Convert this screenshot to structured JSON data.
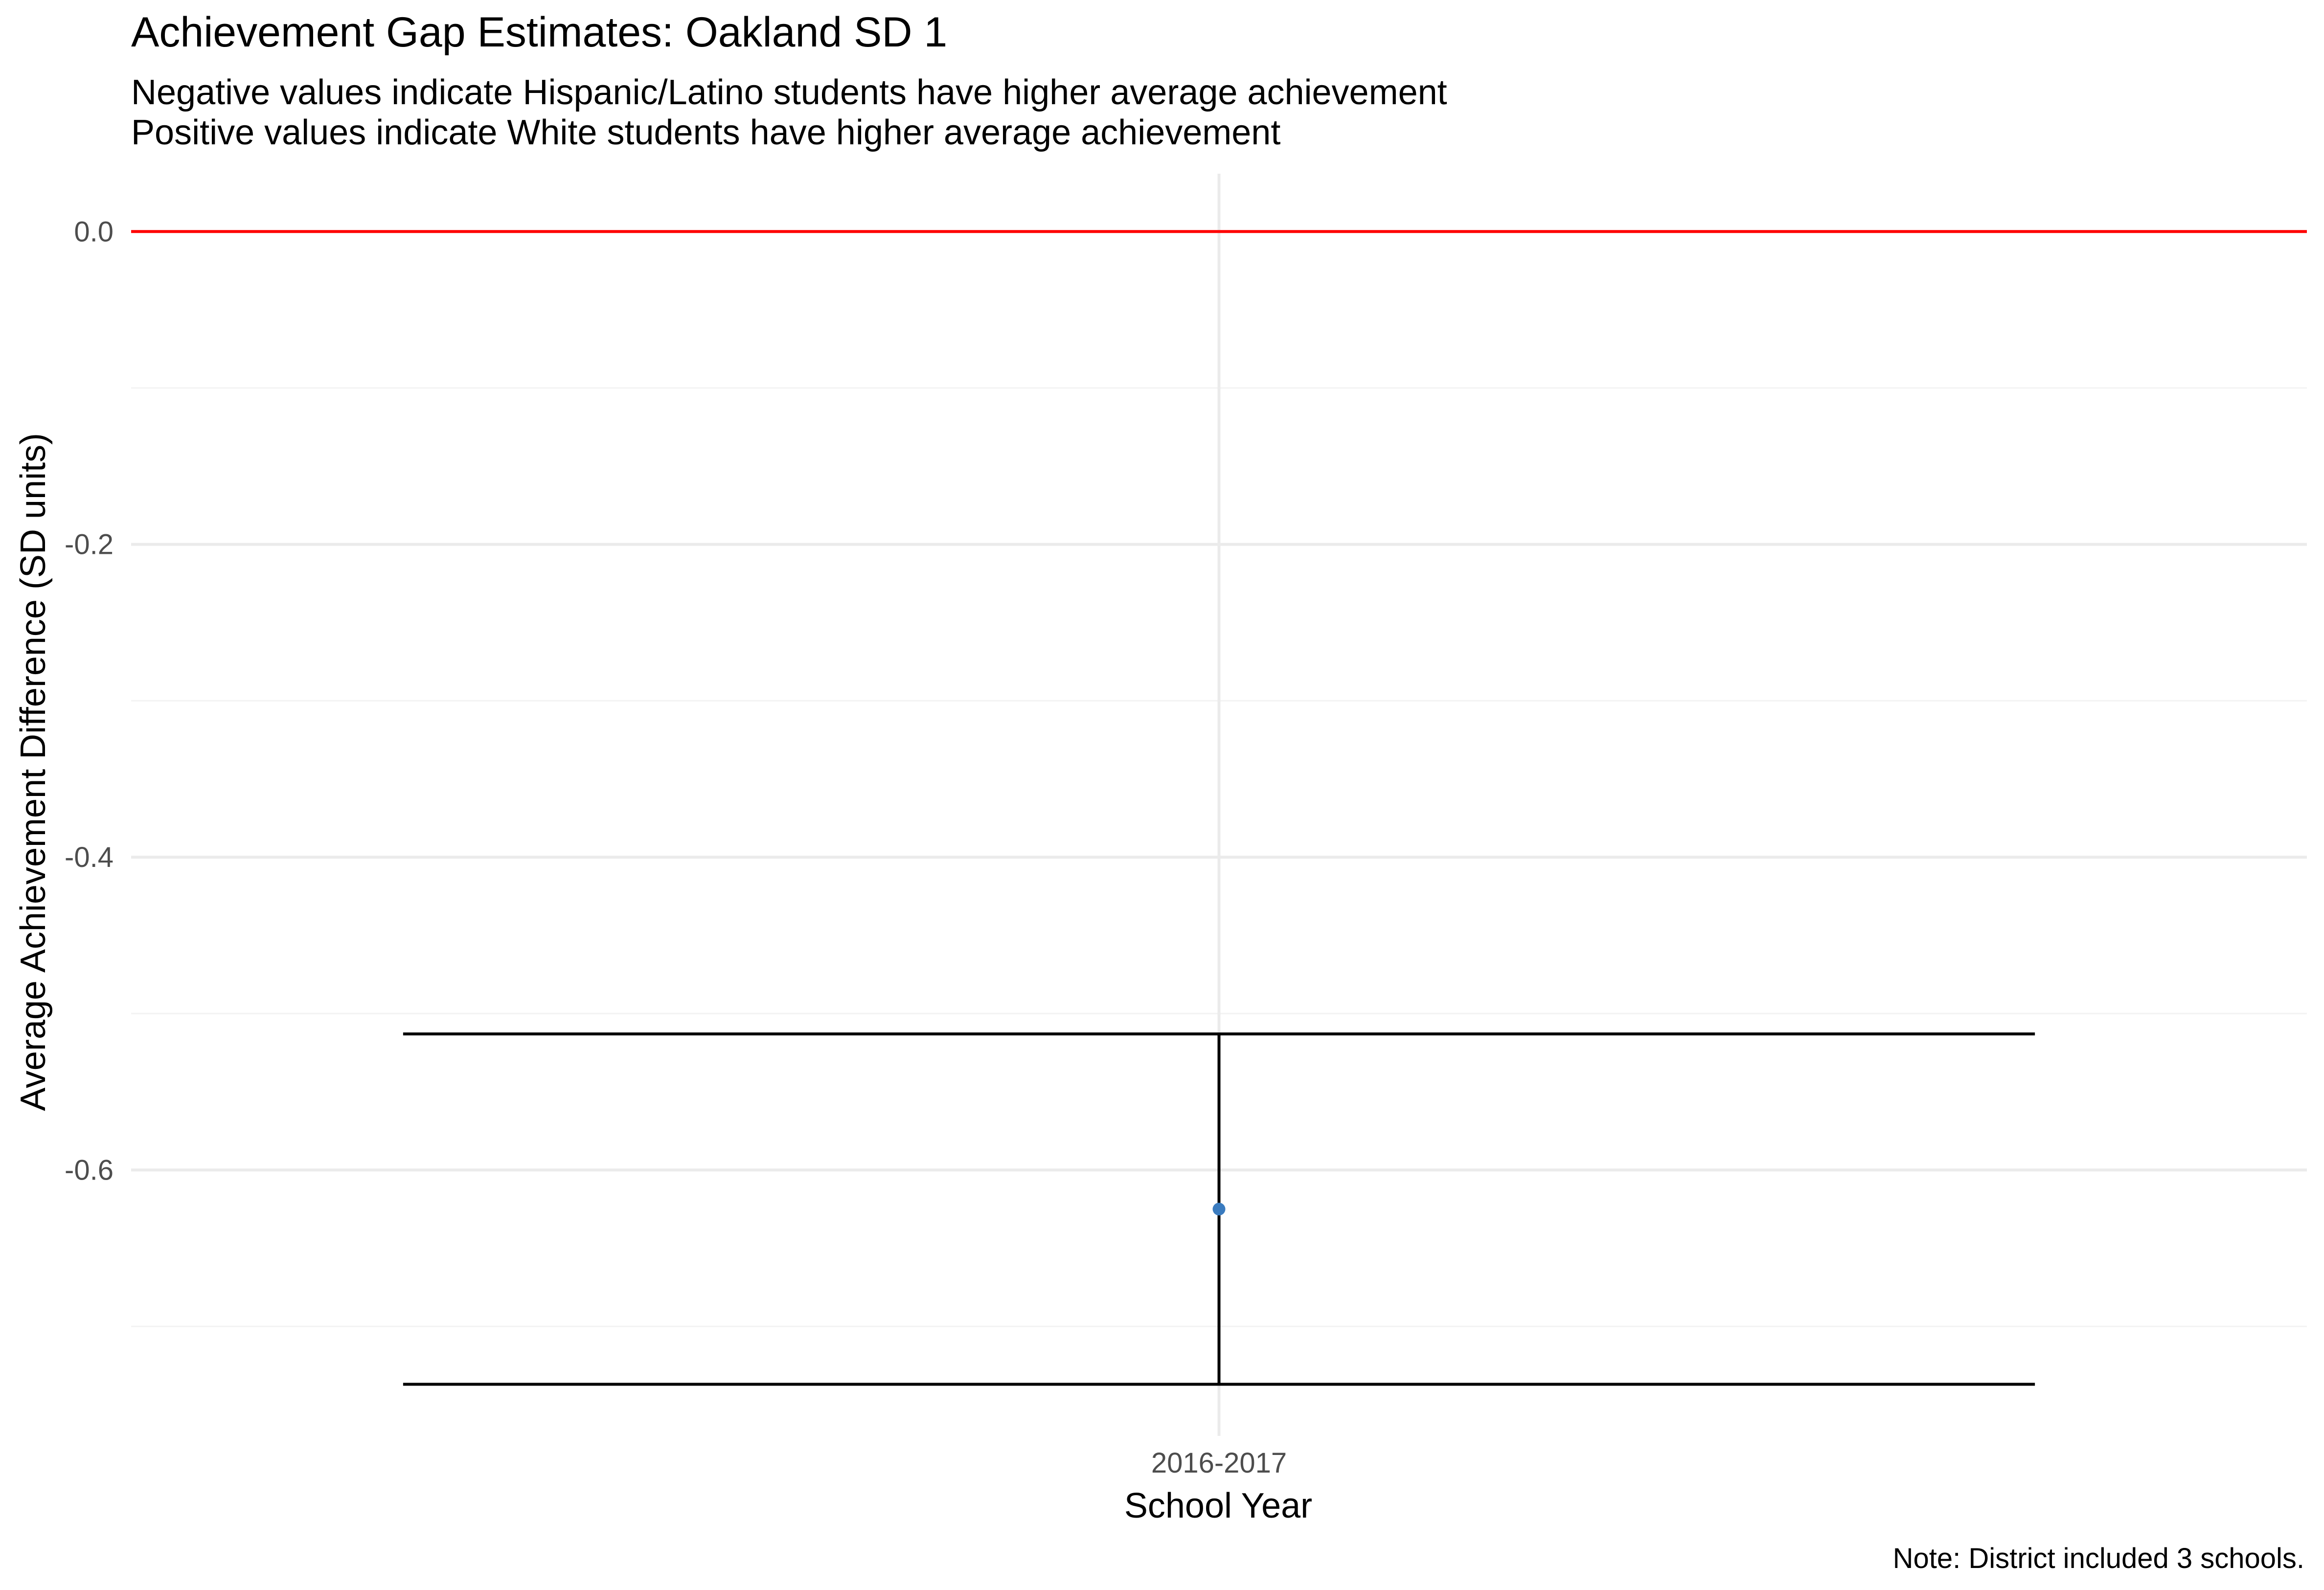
{
  "chart_data": {
    "type": "scatter",
    "title": "Achievement Gap Estimates: Oakland SD 1",
    "subtitle": [
      "Negative values indicate Hispanic/Latino students have higher average achievement",
      "Positive values indicate White students have higher average achievement"
    ],
    "xlabel": "School Year",
    "ylabel": "Average Achievement Difference (SD units)",
    "caption": "Note: District included 3 schools.",
    "categories": [
      "2016-2017"
    ],
    "points": [
      {
        "x": "2016-2017",
        "y": -0.625,
        "ymin": -0.737,
        "ymax": -0.513
      }
    ],
    "yticks": [
      0.0,
      -0.2,
      -0.4,
      -0.6
    ],
    "ytick_labels": [
      "0.0",
      "-0.2",
      "-0.4",
      "-0.6"
    ],
    "ylim": [
      -0.77,
      0.037
    ],
    "reference_line": {
      "y": 0.0,
      "color": "#ff0000"
    },
    "point_color": "#3a7bbf",
    "errorbar_color": "#000000",
    "grid": true,
    "grid_color": "#ebebeb",
    "legend": "none"
  }
}
